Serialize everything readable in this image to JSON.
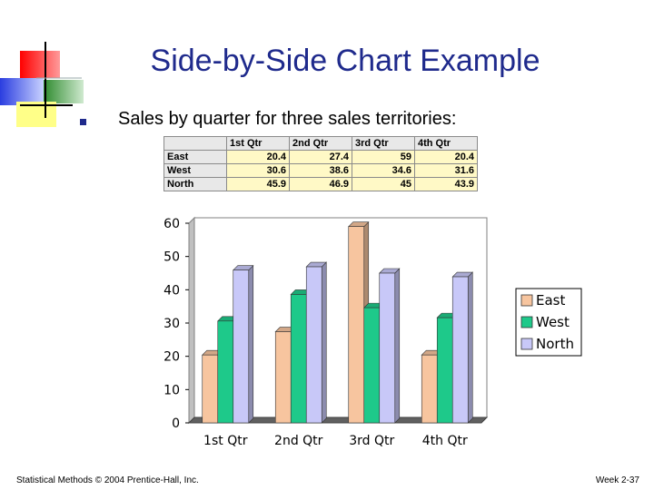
{
  "slide": {
    "title": "Side-by-Side Chart Example",
    "bullet": "Sales by quarter for three sales territories:",
    "footer_left": "Statistical Methods © 2004 Prentice-Hall, Inc.",
    "footer_right": "Week 2-37"
  },
  "table": {
    "headers": [
      "1st Qtr",
      "2nd Qtr",
      "3rd Qtr",
      "4th Qtr"
    ],
    "rows": [
      {
        "label": "East",
        "values": [
          "20.4",
          "27.4",
          "59",
          "20.4"
        ]
      },
      {
        "label": "West",
        "values": [
          "30.6",
          "38.6",
          "34.6",
          "31.6"
        ]
      },
      {
        "label": "North",
        "values": [
          "45.9",
          "46.9",
          "45",
          "43.9"
        ]
      }
    ]
  },
  "chart_data": {
    "type": "bar",
    "categories": [
      "1st Qtr",
      "2nd Qtr",
      "3rd Qtr",
      "4th Qtr"
    ],
    "series": [
      {
        "name": "East",
        "values": [
          20.4,
          27.4,
          59,
          20.4
        ],
        "color": "#f7c59f"
      },
      {
        "name": "West",
        "values": [
          30.6,
          38.6,
          34.6,
          31.6
        ],
        "color": "#1ec98a"
      },
      {
        "name": "North",
        "values": [
          45.9,
          46.9,
          45,
          43.9
        ],
        "color": "#c8c8f8"
      }
    ],
    "yticks": [
      "0",
      "10",
      "20",
      "30",
      "40",
      "50",
      "60"
    ],
    "ylim": [
      0,
      60
    ],
    "grid": false,
    "legend_position": "right",
    "style": "3d"
  }
}
